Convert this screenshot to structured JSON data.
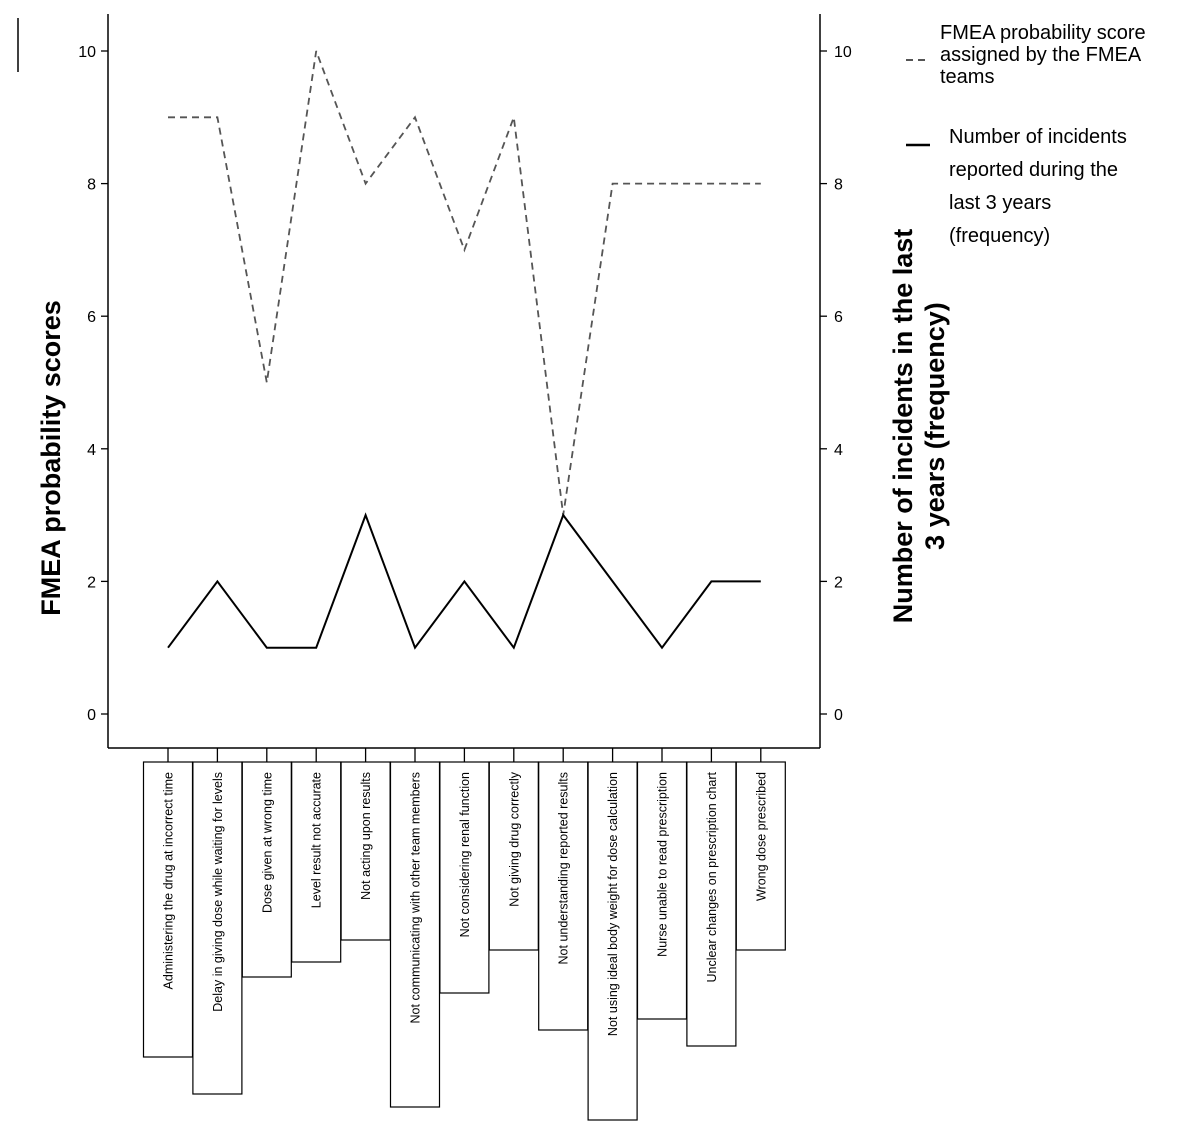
{
  "chart_data": {
    "type": "line",
    "categories": [
      "Administering the drug at incorrect time",
      "Delay in giving dose while waiting for levels",
      "Dose given at wrong time",
      "Level result not accurate",
      "Not acting upon results",
      "Not communicating with other team members",
      "Not considering renal function",
      "Not giving drug correctly",
      "Not understanding reported results",
      "Not using ideal body weight for dose calculation",
      "Nurse unable to read prescription",
      "Unclear changes on prescription chart",
      "Wrong dose prescribed"
    ],
    "series": [
      {
        "name": "FMEA probability score assigned by the FMEA teams",
        "legend_lines": [
          "FMEA probability score",
          "assigned by the FMEA",
          "teams"
        ],
        "style": "dashed",
        "axis": "left",
        "values": [
          9,
          9,
          5,
          10,
          8,
          9,
          7,
          9,
          3,
          8,
          8,
          8,
          8
        ]
      },
      {
        "name": "Number of incidents reported during the last 3 years (frequency)",
        "legend_lines": [
          "Number of incidents",
          "reported during the",
          "last 3 years",
          "(frequency)"
        ],
        "style": "solid",
        "axis": "right",
        "values": [
          1,
          2,
          1,
          1,
          3,
          1,
          2,
          1,
          3,
          2,
          1,
          2,
          2
        ]
      }
    ],
    "ylabel": "FMEA probability scores",
    "y2label_lines": [
      "Number of incidents in the last",
      "3 years (frequency)"
    ],
    "ylim": [
      0,
      10
    ],
    "y2lim": [
      0,
      10
    ],
    "yticks": [
      0,
      2,
      4,
      6,
      8,
      10
    ],
    "grid": false,
    "legend_position": "top-right",
    "colors": {
      "lines": "#000000",
      "dashed": "#555555"
    }
  }
}
